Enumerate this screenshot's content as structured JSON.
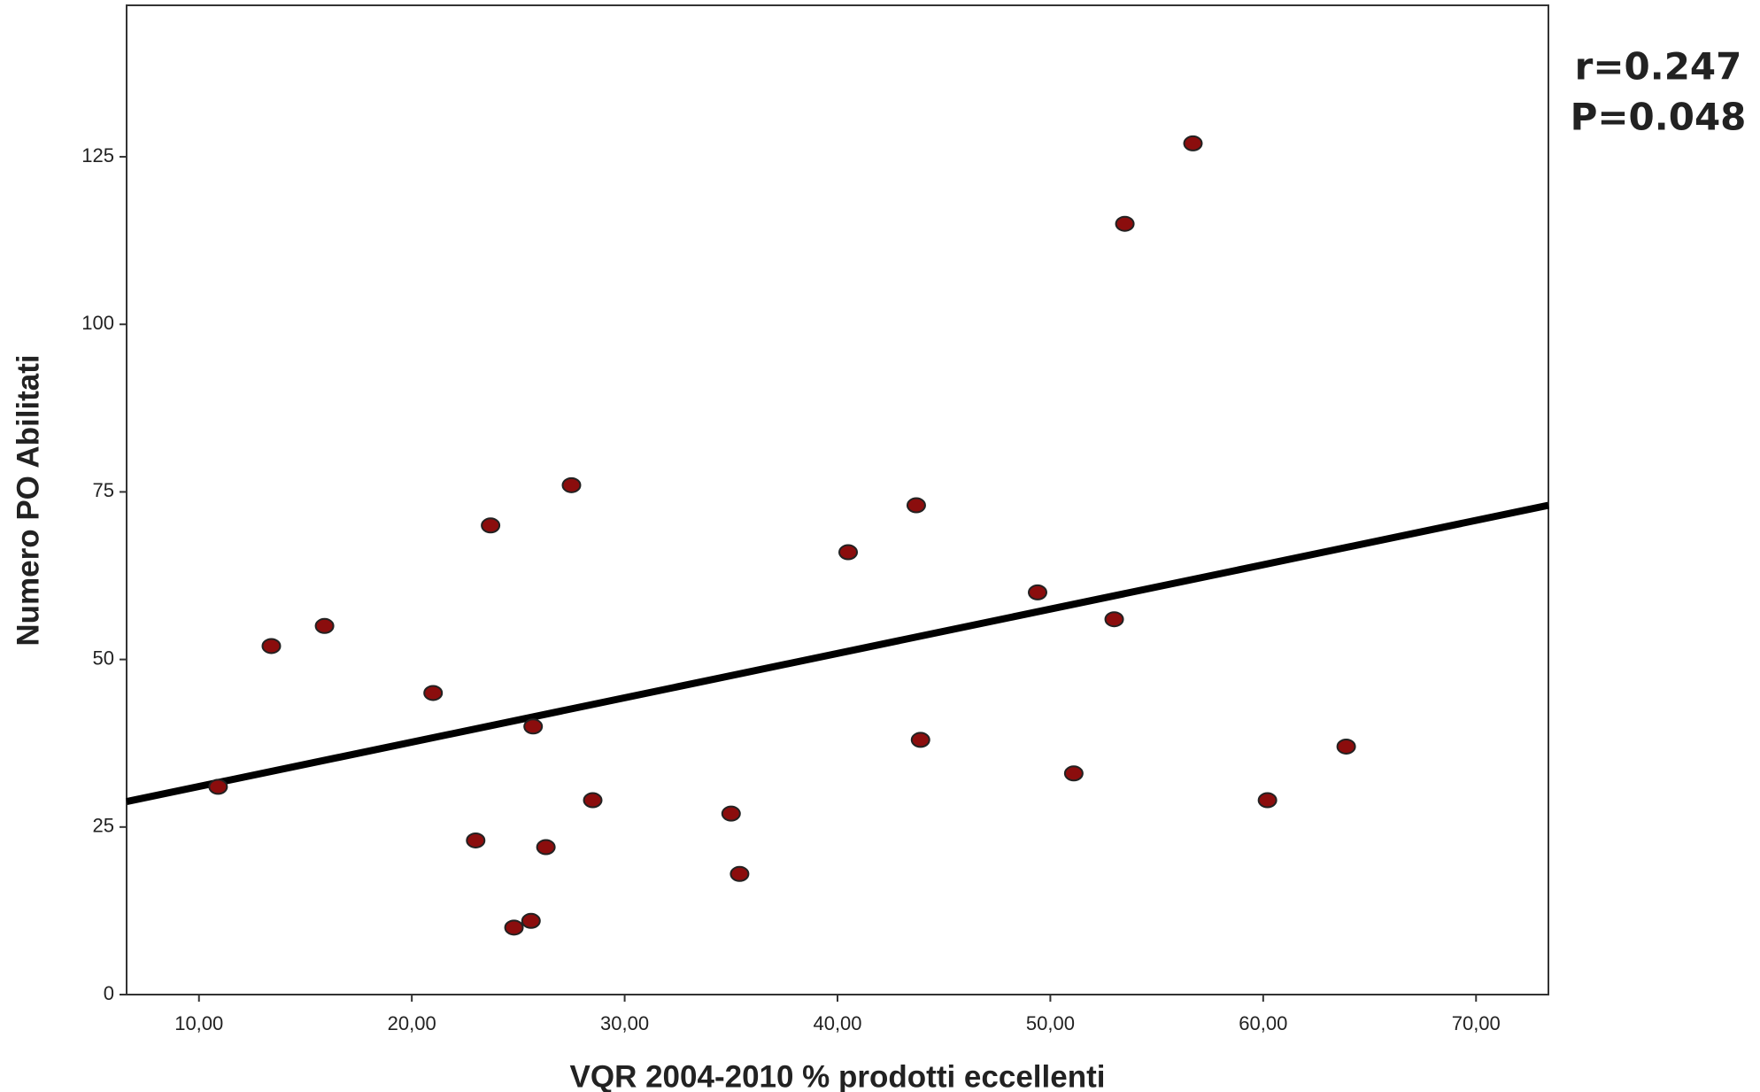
{
  "chart_data": {
    "type": "scatter",
    "x_label": "VQR  2004-2010 % prodotti eccellenti",
    "y_label": "Numero PO Abilitati",
    "annotations": [
      "r=0.247",
      "P=0.048"
    ],
    "x": [
      10.9,
      13.4,
      15.9,
      21.0,
      23.0,
      23.7,
      24.8,
      25.6,
      25.7,
      26.3,
      27.5,
      28.5,
      35.0,
      35.4,
      40.5,
      43.7,
      43.9,
      49.4,
      51.1,
      53.0,
      53.5,
      56.7,
      60.2,
      63.9
    ],
    "values": [
      31,
      52,
      55,
      45,
      23,
      70,
      10,
      11,
      40,
      22,
      76,
      29,
      27,
      18,
      66,
      73,
      38,
      60,
      33,
      56,
      115,
      127,
      29,
      37
    ],
    "color": "#8b0d0d",
    "fit_line": {
      "x": [
        6.6,
        73.4
      ],
      "y": [
        28.8,
        73.0
      ]
    },
    "xlim": [
      6.6,
      73.4
    ],
    "ylim": [
      0,
      147.6
    ],
    "xticks": [
      {
        "value": 10,
        "label": "10,00"
      },
      {
        "value": 20,
        "label": "20,00"
      },
      {
        "value": 30,
        "label": "30,00"
      },
      {
        "value": 40,
        "label": "40,00"
      },
      {
        "value": 50,
        "label": "50,00"
      },
      {
        "value": 60,
        "label": "60,00"
      },
      {
        "value": 70,
        "label": "70,00"
      }
    ],
    "yticks": [
      0,
      25,
      50,
      75,
      100,
      125
    ]
  }
}
